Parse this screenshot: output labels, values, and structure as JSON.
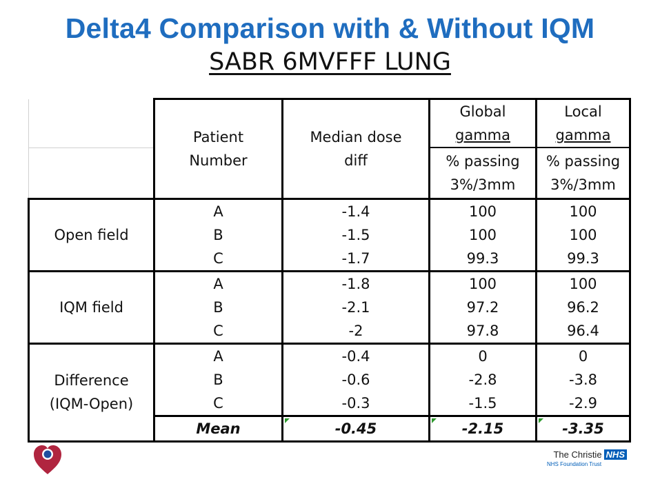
{
  "slide": {
    "title": "Delta4 Comparison with & Without IQM",
    "subtitle": "SABR 6MVFFF LUNG"
  },
  "table": {
    "headers": {
      "patient": [
        "Patient",
        "Number"
      ],
      "median": [
        "Median dose",
        "diff"
      ],
      "global_top": [
        "Global",
        "gamma"
      ],
      "global_bottom": [
        "% passing",
        "3%/3mm"
      ],
      "local_top": [
        "Local",
        "gamma"
      ],
      "local_bottom": [
        "% passing",
        "3%/3mm"
      ]
    },
    "groups": [
      {
        "label": [
          "Open field"
        ],
        "rows": [
          {
            "patient": "A",
            "median": "-1.4",
            "global": "100",
            "local": "100"
          },
          {
            "patient": "B",
            "median": "-1.5",
            "global": "100",
            "local": "100"
          },
          {
            "patient": "C",
            "median": "-1.7",
            "global": "99.3",
            "local": "99.3"
          }
        ]
      },
      {
        "label": [
          "IQM field"
        ],
        "rows": [
          {
            "patient": "A",
            "median": "-1.8",
            "global": "100",
            "local": "100"
          },
          {
            "patient": "B",
            "median": "-2.1",
            "global": "97.2",
            "local": "96.2"
          },
          {
            "patient": "C",
            "median": "-2",
            "global": "97.8",
            "local": "96.4"
          }
        ]
      },
      {
        "label": [
          "Difference",
          "(IQM-Open)"
        ],
        "rows": [
          {
            "patient": "A",
            "median": "-0.4",
            "global": "0",
            "local": "0"
          },
          {
            "patient": "B",
            "median": "-0.6",
            "global": "-2.8",
            "local": "-3.8"
          },
          {
            "patient": "C",
            "median": "-0.3",
            "global": "-1.5",
            "local": "-2.9"
          }
        ]
      }
    ],
    "mean": {
      "label": "Mean",
      "median": "-0.45",
      "global": "-2.15",
      "local": "-3.35"
    }
  },
  "footer": {
    "logo_icon": "heart-logo-icon",
    "org_name": "The Christie",
    "nhs_badge": "NHS",
    "trust_line": "NHS Foundation Trust",
    "colors": {
      "title": "#1f6dbf",
      "nhs_blue": "#005eb8",
      "heart": "#b0253f",
      "dot": "#1f4fa0"
    }
  }
}
